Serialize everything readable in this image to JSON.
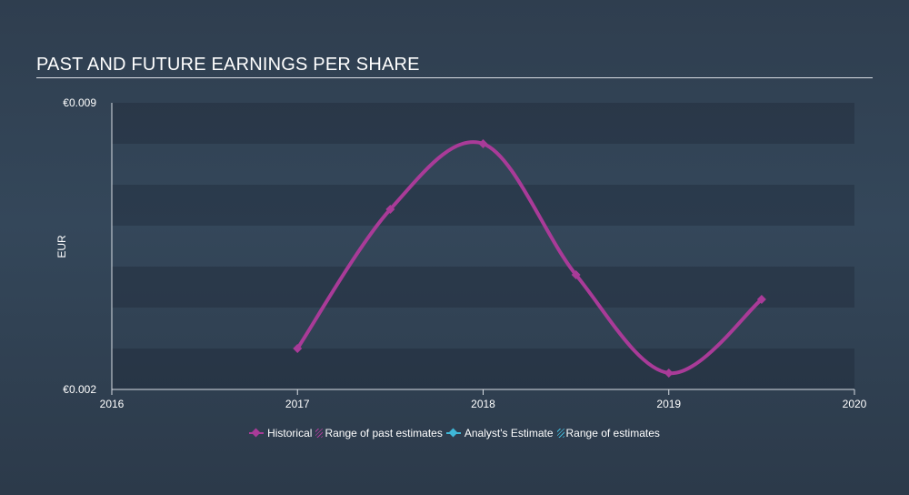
{
  "title": "PAST AND FUTURE EARNINGS PER SHARE",
  "colors": {
    "historical": "#a93b98",
    "range_past": "#a93b98",
    "analyst": "#3fb8d8",
    "range_estimates": "#3fb8d8"
  },
  "chart_data": {
    "type": "line",
    "title": "PAST AND FUTURE EARNINGS PER SHARE",
    "ylabel": "EUR",
    "xlabel": "",
    "xlim": [
      2016,
      2020
    ],
    "ylim": [
      0.002,
      0.009
    ],
    "y_tick_labels": [
      {
        "value": 0.009,
        "label": "€0.009"
      },
      {
        "value": 0.002,
        "label": "€0.002"
      }
    ],
    "x_ticks": [
      2016,
      2017,
      2018,
      2019,
      2020
    ],
    "x_tick_labels": [
      "2016",
      "2017",
      "2018",
      "2019",
      "2020"
    ],
    "grid": true,
    "legend_position": "bottom",
    "series": [
      {
        "name": "Historical",
        "color": "#a93b98",
        "points": [
          {
            "x": 2017.0,
            "y": 0.003
          },
          {
            "x": 2017.5,
            "y": 0.0064
          },
          {
            "x": 2018.0,
            "y": 0.008
          },
          {
            "x": 2018.5,
            "y": 0.0048
          },
          {
            "x": 2019.0,
            "y": 0.0024
          },
          {
            "x": 2019.5,
            "y": 0.0042
          }
        ]
      }
    ]
  },
  "legend": [
    {
      "label": "Historical",
      "kind": "line",
      "color_key": "historical"
    },
    {
      "label": "Range of past estimates",
      "kind": "hatch",
      "color_key": "range_past"
    },
    {
      "label": "Analyst's Estimate",
      "kind": "line",
      "color_key": "analyst"
    },
    {
      "label": "Range of estimates",
      "kind": "hatch",
      "color_key": "range_estimates"
    }
  ]
}
